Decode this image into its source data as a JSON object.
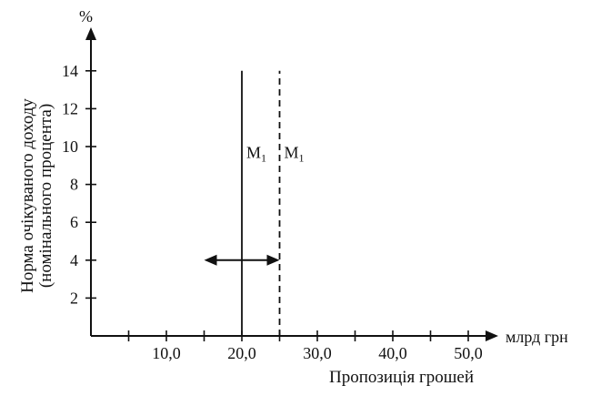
{
  "chart_data": {
    "type": "line",
    "y_unit": "%",
    "x_unit": "млрд грн",
    "xlabel": "Пропозиція грошей",
    "ylabel_lines": [
      "Норма очікуваного доходу",
      "(номінального процента)"
    ],
    "xlim": [
      0,
      55
    ],
    "ylim": [
      0,
      15
    ],
    "x_ticks": [
      5,
      10,
      15,
      20,
      25,
      30,
      35,
      40,
      45,
      50
    ],
    "x_tick_labels": [
      {
        "value": 10,
        "label": "10,0"
      },
      {
        "value": 20,
        "label": "20,0"
      },
      {
        "value": 30,
        "label": "30,0"
      },
      {
        "value": 40,
        "label": "40,0"
      },
      {
        "value": 50,
        "label": "50,0"
      }
    ],
    "y_ticks": [
      2,
      4,
      6,
      8,
      10,
      12,
      14
    ],
    "y_tick_labels": [
      {
        "value": 2,
        "label": "2"
      },
      {
        "value": 4,
        "label": "4"
      },
      {
        "value": 6,
        "label": "6"
      },
      {
        "value": 8,
        "label": "8"
      },
      {
        "value": 10,
        "label": "10"
      },
      {
        "value": 12,
        "label": "12"
      },
      {
        "value": 14,
        "label": "14"
      }
    ],
    "series": [
      {
        "name": "M1",
        "label_main": "M",
        "label_sub": "1",
        "style": "solid",
        "x": [
          20,
          20
        ],
        "y": [
          0,
          14
        ]
      },
      {
        "name": "M1",
        "label_main": "M",
        "label_sub": "1",
        "style": "dashed",
        "x": [
          25,
          25
        ],
        "y": [
          0,
          14
        ]
      }
    ],
    "annotations": [
      {
        "type": "double-arrow",
        "from": [
          15,
          4
        ],
        "to": [
          25,
          4
        ]
      }
    ],
    "label_y": 9.4,
    "grid": false,
    "legend": "none",
    "colors": {
      "ink": "#111111",
      "background": "#ffffff"
    }
  }
}
